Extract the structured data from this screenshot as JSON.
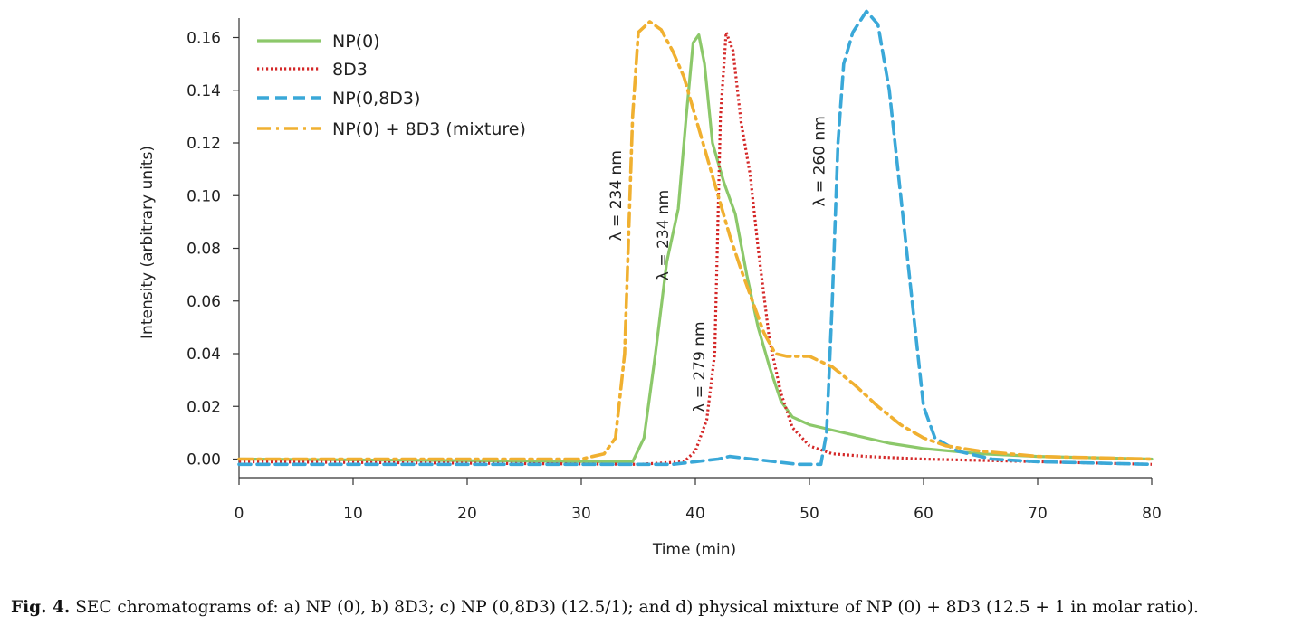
{
  "caption": {
    "label": "Fig. 4.",
    "text": "SEC chromatograms of: a) NP (0), b) 8D3; c) NP (0,8D3) (12.5/1); and d) physical mixture of NP (0) + 8D3 (12.5 + 1 in molar ratio)."
  },
  "chart_data": {
    "type": "line",
    "title": "",
    "xlabel": "Time (min)",
    "ylabel": "Intensity (arbitrary units)",
    "xlim": [
      0,
      80
    ],
    "ylim": [
      -0.005,
      0.168
    ],
    "x_ticks": [
      0,
      10,
      20,
      30,
      40,
      50,
      60,
      70,
      80
    ],
    "y_ticks": [
      0.0,
      0.02,
      0.04,
      0.06,
      0.08,
      0.1,
      0.12,
      0.14,
      0.16
    ],
    "y_tick_labels": [
      "0.00",
      "0.02",
      "0.04",
      "0.06",
      "0.08",
      "0.10",
      "0.12",
      "0.14",
      "0.16"
    ],
    "grid": false,
    "legend_position": "top-left",
    "series": [
      {
        "name": "NP(0)",
        "color": "#8cc86a",
        "style": "solid",
        "points": [
          [
            0,
            0.0
          ],
          [
            33,
            -0.001
          ],
          [
            34.5,
            -0.001
          ],
          [
            35.5,
            0.008
          ],
          [
            36.5,
            0.04
          ],
          [
            37.5,
            0.075
          ],
          [
            38.5,
            0.095
          ],
          [
            39.2,
            0.13
          ],
          [
            39.8,
            0.158
          ],
          [
            40.3,
            0.161
          ],
          [
            40.8,
            0.15
          ],
          [
            41.5,
            0.12
          ],
          [
            42.5,
            0.105
          ],
          [
            43.5,
            0.093
          ],
          [
            44.5,
            0.07
          ],
          [
            45.5,
            0.05
          ],
          [
            46.5,
            0.035
          ],
          [
            47.5,
            0.022
          ],
          [
            48.5,
            0.016
          ],
          [
            50,
            0.013
          ],
          [
            52,
            0.011
          ],
          [
            54,
            0.009
          ],
          [
            57,
            0.006
          ],
          [
            60,
            0.004
          ],
          [
            65,
            0.002
          ],
          [
            70,
            0.001
          ],
          [
            80,
            0.0
          ]
        ]
      },
      {
        "name": "8D3",
        "color": "#d42828",
        "style": "dotted",
        "points": [
          [
            0,
            -0.001
          ],
          [
            35,
            -0.002
          ],
          [
            39,
            -0.001
          ],
          [
            40,
            0.003
          ],
          [
            41,
            0.015
          ],
          [
            41.7,
            0.04
          ],
          [
            42.2,
            0.13
          ],
          [
            42.7,
            0.162
          ],
          [
            43.3,
            0.155
          ],
          [
            44,
            0.128
          ],
          [
            44.8,
            0.108
          ],
          [
            45.5,
            0.08
          ],
          [
            46.5,
            0.045
          ],
          [
            47.5,
            0.025
          ],
          [
            48.5,
            0.012
          ],
          [
            50,
            0.005
          ],
          [
            52,
            0.002
          ],
          [
            55,
            0.001
          ],
          [
            60,
            0.0
          ],
          [
            70,
            -0.001
          ],
          [
            80,
            -0.002
          ]
        ]
      },
      {
        "name": "NP(0,8D3)",
        "color": "#3aa8d8",
        "style": "dashed",
        "points": [
          [
            0,
            -0.002
          ],
          [
            35,
            -0.002
          ],
          [
            38,
            -0.002
          ],
          [
            40,
            -0.001
          ],
          [
            42,
            0.0
          ],
          [
            43,
            0.001
          ],
          [
            45,
            0.0
          ],
          [
            47,
            -0.001
          ],
          [
            49,
            -0.002
          ],
          [
            51,
            -0.002
          ],
          [
            51.5,
            0.01
          ],
          [
            52,
            0.06
          ],
          [
            52.5,
            0.12
          ],
          [
            53,
            0.15
          ],
          [
            53.8,
            0.162
          ],
          [
            55,
            0.17
          ],
          [
            56,
            0.165
          ],
          [
            57,
            0.14
          ],
          [
            58,
            0.1
          ],
          [
            59,
            0.06
          ],
          [
            60,
            0.02
          ],
          [
            61,
            0.008
          ],
          [
            63,
            0.003
          ],
          [
            66,
            0.0
          ],
          [
            70,
            -0.001
          ],
          [
            80,
            -0.002
          ]
        ]
      },
      {
        "name": "NP(0) + 8D3 (mixture)",
        "color": "#f0b030",
        "style": "dashdot",
        "points": [
          [
            0,
            0.0
          ],
          [
            30,
            0.0
          ],
          [
            32,
            0.002
          ],
          [
            33,
            0.008
          ],
          [
            33.8,
            0.04
          ],
          [
            34.5,
            0.13
          ],
          [
            35,
            0.162
          ],
          [
            36,
            0.166
          ],
          [
            37,
            0.163
          ],
          [
            38,
            0.155
          ],
          [
            39,
            0.145
          ],
          [
            40,
            0.13
          ],
          [
            41,
            0.115
          ],
          [
            42,
            0.1
          ],
          [
            43,
            0.085
          ],
          [
            44,
            0.072
          ],
          [
            45,
            0.06
          ],
          [
            46,
            0.048
          ],
          [
            47,
            0.04
          ],
          [
            48,
            0.039
          ],
          [
            50,
            0.039
          ],
          [
            52,
            0.035
          ],
          [
            54,
            0.028
          ],
          [
            56,
            0.02
          ],
          [
            58,
            0.013
          ],
          [
            60,
            0.008
          ],
          [
            62,
            0.005
          ],
          [
            65,
            0.003
          ],
          [
            70,
            0.001
          ],
          [
            80,
            0.0
          ]
        ]
      }
    ],
    "annotations": [
      {
        "text": "λ = 234 nm",
        "x": 33.5,
        "y": 0.1
      },
      {
        "text": "λ = 234 nm",
        "x": 37.6,
        "y": 0.085
      },
      {
        "text": "λ = 279 nm",
        "x": 40.8,
        "y": 0.035
      },
      {
        "text": "λ = 260 nm",
        "x": 51.3,
        "y": 0.113
      }
    ]
  }
}
